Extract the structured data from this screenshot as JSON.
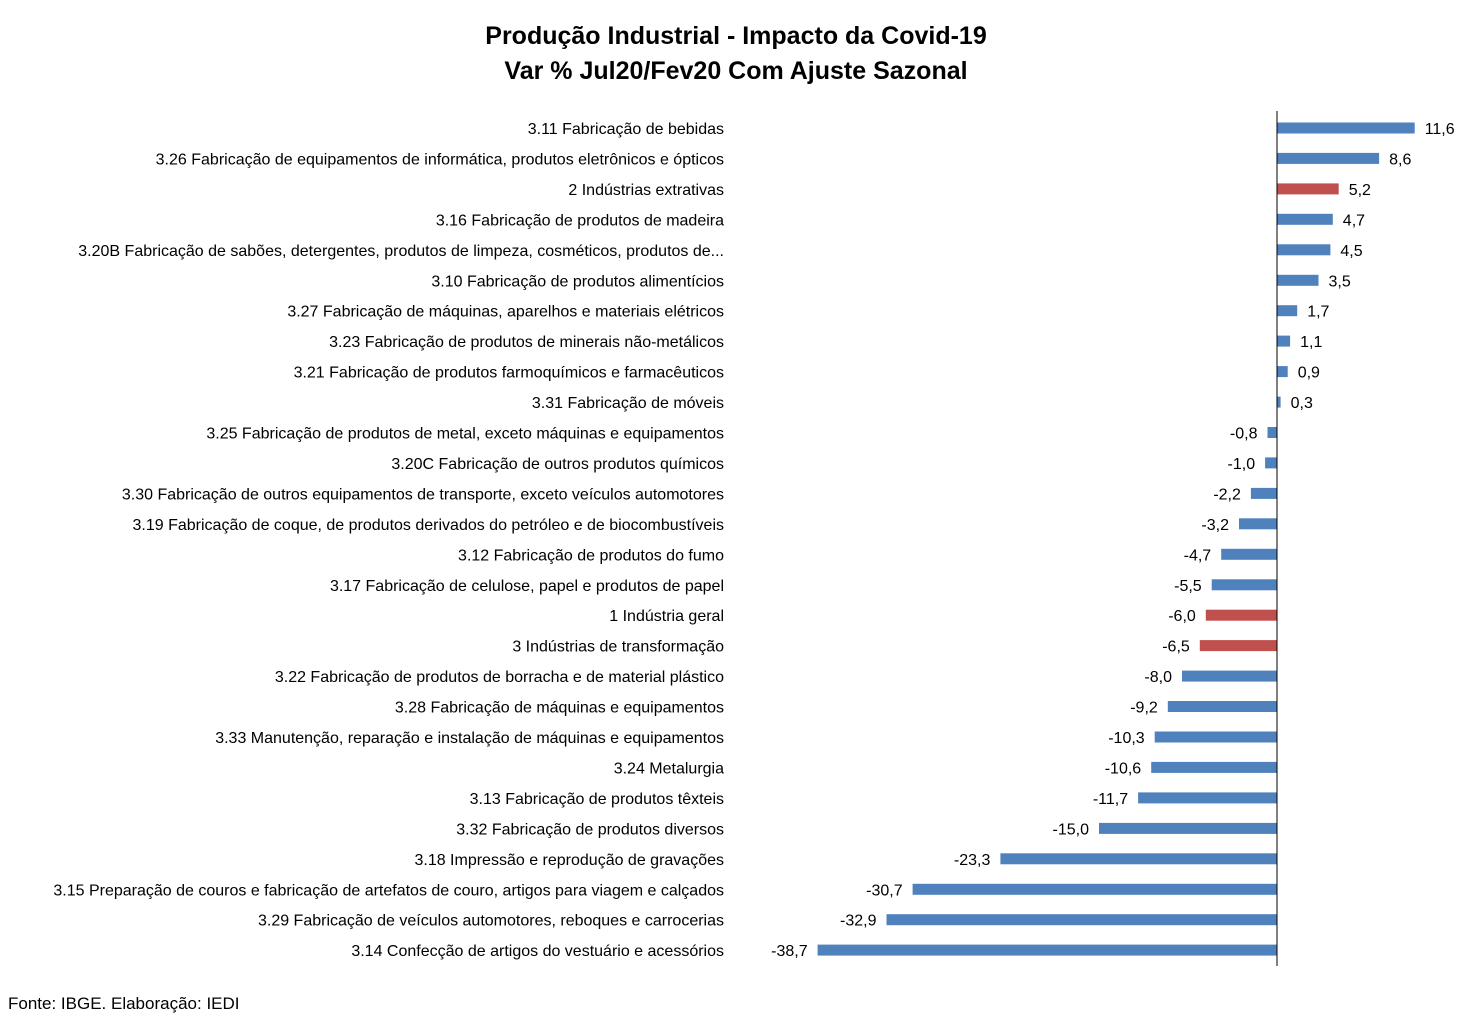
{
  "chart_data": {
    "type": "bar",
    "orientation": "horizontal",
    "title": "Produção Industrial - Impacto da Covid-19",
    "subtitle": "Var % Jul20/Fev20 Com Ajuste Sazonal",
    "categories": [
      "3.11 Fabricação de bebidas",
      "3.26 Fabricação de equipamentos de informática, produtos eletrônicos e ópticos",
      "2 Indústrias extrativas",
      "3.16 Fabricação de produtos de madeira",
      "3.20B Fabricação de sabões, detergentes, produtos de limpeza, cosméticos, produtos de...",
      "3.10 Fabricação de produtos alimentícios",
      "3.27 Fabricação de máquinas, aparelhos e materiais elétricos",
      "3.23 Fabricação de produtos de minerais não-metálicos",
      "3.21 Fabricação de produtos farmoquímicos e farmacêuticos",
      "3.31 Fabricação de móveis",
      "3.25 Fabricação de produtos de metal, exceto máquinas e equipamentos",
      "3.20C Fabricação de outros produtos químicos",
      "3.30 Fabricação de outros equipamentos de transporte, exceto veículos automotores",
      "3.19 Fabricação de coque, de produtos derivados do petróleo e de biocombustíveis",
      "3.12 Fabricação de produtos do fumo",
      "3.17 Fabricação de celulose, papel e produtos de papel",
      "1 Indústria geral",
      "3 Indústrias de transformação",
      "3.22 Fabricação de produtos de borracha e de material plástico",
      "3.28 Fabricação de máquinas e equipamentos",
      "3.33 Manutenção, reparação e instalação de máquinas e equipamentos",
      "3.24 Metalurgia",
      "3.13 Fabricação de produtos têxteis",
      "3.32 Fabricação de produtos diversos",
      "3.18 Impressão e reprodução de gravações",
      "3.15 Preparação de couros e fabricação de artefatos de couro, artigos para viagem e calçados",
      "3.29 Fabricação de veículos automotores, reboques e carrocerias",
      "3.14 Confecção de artigos do vestuário e acessórios"
    ],
    "values": [
      11.6,
      8.6,
      5.2,
      4.7,
      4.5,
      3.5,
      1.7,
      1.1,
      0.9,
      0.3,
      -0.8,
      -1.0,
      -2.2,
      -3.2,
      -4.7,
      -5.5,
      -6.0,
      -6.5,
      -8.0,
      -9.2,
      -10.3,
      -10.6,
      -11.7,
      -15.0,
      -23.3,
      -30.7,
      -32.9,
      -38.7
    ],
    "value_labels": [
      "11,6",
      "8,6",
      "5,2",
      "4,7",
      "4,5",
      "3,5",
      "1,7",
      "1,1",
      "0,9",
      "0,3",
      "-0,8",
      "-1,0",
      "-2,2",
      "-3,2",
      "-4,7",
      "-5,5",
      "-6,0",
      "-6,5",
      "-8,0",
      "-9,2",
      "-10,3",
      "-10,6",
      "-11,7",
      "-15,0",
      "-23,3",
      "-30,7",
      "-32,9",
      "-38,7"
    ],
    "highlighted": [
      false,
      false,
      true,
      false,
      false,
      false,
      false,
      false,
      false,
      false,
      false,
      false,
      false,
      false,
      false,
      false,
      true,
      true,
      false,
      false,
      false,
      false,
      false,
      false,
      false,
      false,
      false,
      false
    ],
    "colors": {
      "default": "#4F81BD",
      "highlight": "#C0504D"
    },
    "xlim": [
      -38.7,
      11.6
    ],
    "grid": false,
    "legend": "none",
    "data_labels": true
  },
  "source": "Fonte: IBGE. Elaboração: IEDI"
}
